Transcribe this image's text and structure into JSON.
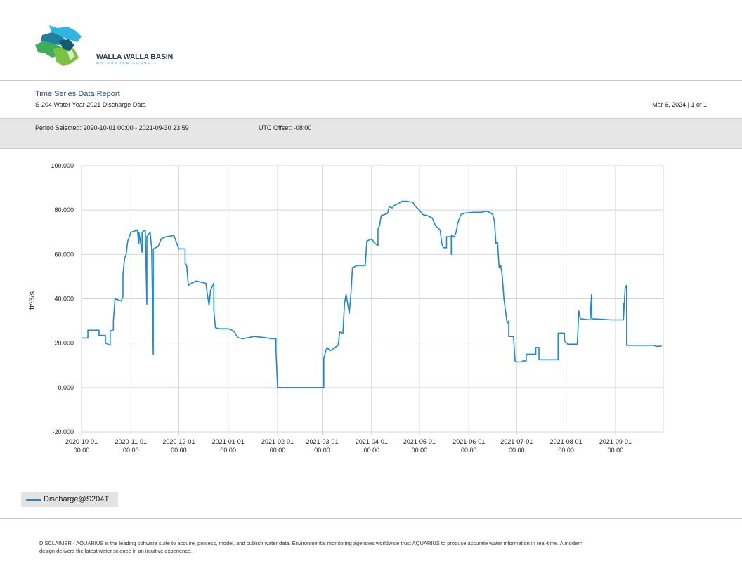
{
  "logo": {
    "name": "WALLA WALLA BASIN",
    "sub": "WATERSHED COUNCIL",
    "colors": [
      "#2fb5e0",
      "#1f7fa0",
      "#3cae5a",
      "#7cc142",
      "#0d5c73"
    ]
  },
  "header": {
    "title": "Time Series Data Report",
    "subtitle": "S-204 Water Year 2021 Discharge Data",
    "date_page": "Mar 6, 2024 | 1 of 1"
  },
  "period": {
    "selected": "Period Selected: 2020-10-01 00:00 - 2021-09-30 23:59",
    "utc": "UTC Offset: -08:00"
  },
  "legend": {
    "label": "Discharge@S204T"
  },
  "disclaimer": "DISCLAIMER - AQUARIUS is the leading software suite to acquire, process, model, and publish water data. Environmental monitoring agencies worldwide trust AQUARIUS to produce accurate water information in real-time. A modern design delivers the latest water science in an intuitive experience.",
  "chart_data": {
    "type": "line",
    "title": "",
    "xlabel": "",
    "ylabel": "ft^3/s",
    "ylim": [
      -20,
      100
    ],
    "y_ticks": [
      "100.000",
      "80.000",
      "60.000",
      "40.000",
      "20.000",
      "0.000",
      "-20.000"
    ],
    "xlim": [
      "2020-10-01",
      "2021-10-01"
    ],
    "x_ticks": [
      {
        "date": "2020-10-01",
        "line1": "2020-10-01",
        "line2": "00:00"
      },
      {
        "date": "2020-11-01",
        "line1": "2020-11-01",
        "line2": "00:00"
      },
      {
        "date": "2020-12-01",
        "line1": "2020-12-01",
        "line2": "00:00"
      },
      {
        "date": "2021-01-01",
        "line1": "2021-01-01",
        "line2": "00:00"
      },
      {
        "date": "2021-02-01",
        "line1": "2021-02-01",
        "line2": "00:00"
      },
      {
        "date": "2021-03-01",
        "line1": "2021-03-01",
        "line2": "00:00"
      },
      {
        "date": "2021-04-01",
        "line1": "2021-04-01",
        "line2": "00:00"
      },
      {
        "date": "2021-05-01",
        "line1": "2021-05-01",
        "line2": "00:00"
      },
      {
        "date": "2021-06-01",
        "line1": "2021-06-01",
        "line2": "00:00"
      },
      {
        "date": "2021-07-01",
        "line1": "2021-07-01",
        "line2": "00:00"
      },
      {
        "date": "2021-08-01",
        "line1": "2021-08-01",
        "line2": "00:00"
      },
      {
        "date": "2021-09-01",
        "line1": "2021-09-01",
        "line2": "00:00"
      }
    ],
    "grid": true,
    "series": [
      {
        "name": "Discharge@S204T",
        "color": "#1a8ad4",
        "points": [
          [
            "2020-10-01",
            22.3
          ],
          [
            "2020-10-05",
            22.3
          ],
          [
            "2020-10-05",
            25.8
          ],
          [
            "2020-10-12",
            25.8
          ],
          [
            "2020-10-12",
            23.5
          ],
          [
            "2020-10-16",
            23.5
          ],
          [
            "2020-10-16",
            20.0
          ],
          [
            "2020-10-19",
            19.0
          ],
          [
            "2020-10-19",
            25.5
          ],
          [
            "2020-10-21",
            26.0
          ],
          [
            "2020-10-21",
            30.0
          ],
          [
            "2020-10-22",
            40.0
          ],
          [
            "2020-10-24",
            39.5
          ],
          [
            "2020-10-26",
            39.0
          ],
          [
            "2020-10-27",
            41.0
          ],
          [
            "2020-10-27",
            51.0
          ],
          [
            "2020-10-28",
            58.0
          ],
          [
            "2020-10-29",
            60.0
          ],
          [
            "2020-10-30",
            66.0
          ],
          [
            "2020-11-01",
            70.0
          ],
          [
            "2020-11-03",
            70.5
          ],
          [
            "2020-11-05",
            71.0
          ],
          [
            "2020-11-06",
            65.0
          ],
          [
            "2020-11-06",
            70.0
          ],
          [
            "2020-11-08",
            61.0
          ],
          [
            "2020-11-08",
            70.0
          ],
          [
            "2020-11-10",
            71.0
          ],
          [
            "2020-11-11",
            37.5
          ],
          [
            "2020-11-11",
            68.0
          ],
          [
            "2020-11-13",
            70.0
          ],
          [
            "2020-11-14",
            63.0
          ],
          [
            "2020-11-15",
            15.0
          ],
          [
            "2020-11-15",
            62.5
          ],
          [
            "2020-11-18",
            63.5
          ],
          [
            "2020-11-20",
            67.0
          ],
          [
            "2020-11-23",
            68.0
          ],
          [
            "2020-11-28",
            68.5
          ],
          [
            "2020-11-30",
            64.5
          ],
          [
            "2020-12-01",
            62.5
          ],
          [
            "2020-12-05",
            62.5
          ],
          [
            "2020-12-05",
            56.0
          ],
          [
            "2020-12-06",
            55.0
          ],
          [
            "2020-12-07",
            46.0
          ],
          [
            "2020-12-09",
            47.0
          ],
          [
            "2020-12-12",
            48.0
          ],
          [
            "2020-12-15",
            47.5
          ],
          [
            "2020-12-18",
            47.0
          ],
          [
            "2020-12-19",
            42.0
          ],
          [
            "2020-12-20",
            37.0
          ],
          [
            "2020-12-21",
            44.0
          ],
          [
            "2020-12-23",
            47.0
          ],
          [
            "2020-12-23",
            35.0
          ],
          [
            "2020-12-24",
            27.0
          ],
          [
            "2020-12-26",
            26.5
          ],
          [
            "2021-01-01",
            26.5
          ],
          [
            "2021-01-03",
            26.0
          ],
          [
            "2021-01-05",
            25.0
          ],
          [
            "2021-01-07",
            22.5
          ],
          [
            "2021-01-10",
            22.0
          ],
          [
            "2021-01-14",
            22.5
          ],
          [
            "2021-01-17",
            23.0
          ],
          [
            "2021-01-20",
            22.8
          ],
          [
            "2021-01-24",
            22.5
          ],
          [
            "2021-01-28",
            22.0
          ],
          [
            "2021-01-31",
            22.0
          ],
          [
            "2021-01-31",
            16.5
          ],
          [
            "2021-02-01",
            0.0
          ],
          [
            "2021-03-02",
            0.0
          ],
          [
            "2021-03-02",
            13.0
          ],
          [
            "2021-03-03",
            16.0
          ],
          [
            "2021-03-04",
            18.0
          ],
          [
            "2021-03-06",
            16.5
          ],
          [
            "2021-03-08",
            17.5
          ],
          [
            "2021-03-11",
            19.0
          ],
          [
            "2021-03-12",
            25.0
          ],
          [
            "2021-03-14",
            24.5
          ],
          [
            "2021-03-15",
            38.0
          ],
          [
            "2021-03-16",
            42.0
          ],
          [
            "2021-03-18",
            33.5
          ],
          [
            "2021-03-19",
            42.0
          ],
          [
            "2021-03-20",
            54.0
          ],
          [
            "2021-03-23",
            55.0
          ],
          [
            "2021-03-28",
            55.0
          ],
          [
            "2021-03-29",
            66.0
          ],
          [
            "2021-04-01",
            67.0
          ],
          [
            "2021-04-03",
            65.0
          ],
          [
            "2021-04-05",
            64.0
          ],
          [
            "2021-04-05",
            71.5
          ],
          [
            "2021-04-06",
            73.0
          ],
          [
            "2021-04-07",
            77.5
          ],
          [
            "2021-04-09",
            78.0
          ],
          [
            "2021-04-11",
            78.5
          ],
          [
            "2021-04-12",
            81.5
          ],
          [
            "2021-04-14",
            81.0
          ],
          [
            "2021-04-15",
            82.0
          ],
          [
            "2021-04-18",
            83.0
          ],
          [
            "2021-04-20",
            84.0
          ],
          [
            "2021-04-23",
            84.0
          ],
          [
            "2021-04-27",
            83.5
          ],
          [
            "2021-04-28",
            82.0
          ],
          [
            "2021-05-01",
            80.0
          ],
          [
            "2021-05-03",
            78.0
          ],
          [
            "2021-05-06",
            77.5
          ],
          [
            "2021-05-09",
            76.5
          ],
          [
            "2021-05-11",
            73.0
          ],
          [
            "2021-05-14",
            71.0
          ],
          [
            "2021-05-15",
            65.0
          ],
          [
            "2021-05-16",
            63.0
          ],
          [
            "2021-05-18",
            63.0
          ],
          [
            "2021-05-18",
            68.0
          ],
          [
            "2021-05-21",
            68.0
          ],
          [
            "2021-05-21",
            60.0
          ],
          [
            "2021-05-21",
            68.5
          ],
          [
            "2021-05-23",
            68.0
          ],
          [
            "2021-05-24",
            70.0
          ],
          [
            "2021-05-25",
            74.0
          ],
          [
            "2021-05-27",
            78.0
          ],
          [
            "2021-05-30",
            78.7
          ],
          [
            "2021-06-04",
            79.0
          ],
          [
            "2021-06-09",
            79.0
          ],
          [
            "2021-06-12",
            79.5
          ],
          [
            "2021-06-14",
            79.0
          ],
          [
            "2021-06-16",
            78.0
          ],
          [
            "2021-06-17",
            75.0
          ],
          [
            "2021-06-18",
            65.0
          ],
          [
            "2021-06-19",
            65.5
          ],
          [
            "2021-06-20",
            54.0
          ],
          [
            "2021-06-21",
            55.0
          ],
          [
            "2021-06-22",
            50.0
          ],
          [
            "2021-06-23",
            40.0
          ],
          [
            "2021-06-25",
            29.0
          ],
          [
            "2021-06-26",
            30.0
          ],
          [
            "2021-06-26",
            23.0
          ],
          [
            "2021-06-29",
            23.0
          ],
          [
            "2021-06-30",
            12.0
          ],
          [
            "2021-07-01",
            11.5
          ],
          [
            "2021-07-04",
            11.5
          ],
          [
            "2021-07-05",
            12.0
          ],
          [
            "2021-07-07",
            12.0
          ],
          [
            "2021-07-07",
            15.0
          ],
          [
            "2021-07-13",
            15.0
          ],
          [
            "2021-07-13",
            18.0
          ],
          [
            "2021-07-15",
            18.0
          ],
          [
            "2021-07-15",
            12.5
          ],
          [
            "2021-07-27",
            12.5
          ],
          [
            "2021-07-27",
            24.5
          ],
          [
            "2021-07-31",
            24.5
          ],
          [
            "2021-07-31",
            21.0
          ],
          [
            "2021-08-02",
            19.5
          ],
          [
            "2021-08-08",
            19.5
          ],
          [
            "2021-08-09",
            34.5
          ],
          [
            "2021-08-10",
            31.0
          ],
          [
            "2021-08-16",
            30.5
          ],
          [
            "2021-08-17",
            42.0
          ],
          [
            "2021-08-17",
            31.0
          ],
          [
            "2021-08-23",
            30.8
          ],
          [
            "2021-08-29",
            30.5
          ],
          [
            "2021-09-02",
            30.5
          ],
          [
            "2021-09-06",
            30.5
          ],
          [
            "2021-09-06",
            38.0
          ],
          [
            "2021-09-06",
            30.5
          ],
          [
            "2021-09-07",
            44.5
          ],
          [
            "2021-09-08",
            46.0
          ],
          [
            "2021-09-08",
            19.0
          ],
          [
            "2021-09-15",
            19.0
          ],
          [
            "2021-09-25",
            19.0
          ],
          [
            "2021-09-27",
            18.5
          ],
          [
            "2021-09-30",
            18.7
          ]
        ]
      }
    ]
  }
}
